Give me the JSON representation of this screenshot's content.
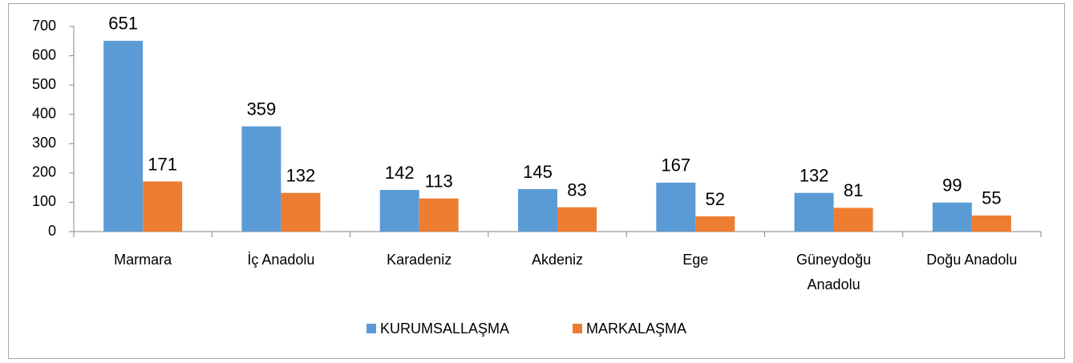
{
  "chart_data": {
    "type": "bar",
    "categories": [
      "Marmara",
      "İç Anadolu",
      "Karadeniz",
      "Akdeniz",
      "Ege",
      "Güneydoğu Anadolu",
      "Doğu Anadolu"
    ],
    "series": [
      {
        "name": "KURUMSALLAŞMA",
        "color": "#5b9bd5",
        "values": [
          651,
          359,
          142,
          145,
          167,
          132,
          99
        ]
      },
      {
        "name": "MARKALAŞMA",
        "color": "#ed7d31",
        "values": [
          171,
          132,
          113,
          83,
          52,
          81,
          55
        ]
      }
    ],
    "ylim": [
      0,
      700
    ],
    "yticks": [
      0,
      100,
      200,
      300,
      400,
      500,
      600,
      700
    ],
    "grid": false,
    "legend": "bottom"
  }
}
